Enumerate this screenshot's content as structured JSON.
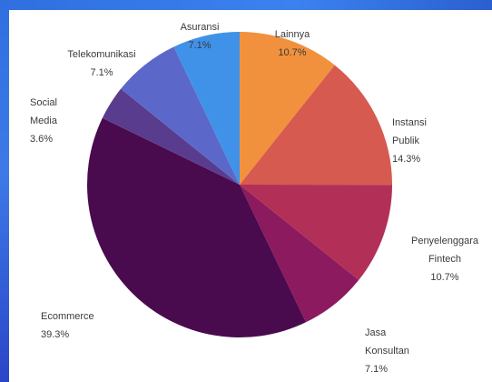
{
  "chart_data": {
    "type": "pie",
    "title": "",
    "slices": [
      {
        "label": [
          "Lainnya"
        ],
        "value": 10.7,
        "percent_label": "10.7%",
        "color": "#f2913d"
      },
      {
        "label": [
          "Instansi",
          "Publik"
        ],
        "value": 14.3,
        "percent_label": "14.3%",
        "color": "#d65a4f"
      },
      {
        "label": [
          "Penyelenggara",
          "Fintech"
        ],
        "value": 10.7,
        "percent_label": "10.7%",
        "color": "#b23058"
      },
      {
        "label": [
          "Jasa",
          "Konsultan"
        ],
        "value": 7.1,
        "percent_label": "7.1%",
        "color": "#8c1a5f"
      },
      {
        "label": [
          "Ecommerce"
        ],
        "value": 39.3,
        "percent_label": "39.3%",
        "color": "#4a0a4e"
      },
      {
        "label": [
          "Social",
          "Media"
        ],
        "value": 3.6,
        "percent_label": "3.6%",
        "color": "#5a3c8f"
      },
      {
        "label": [
          "Telekomunikasi"
        ],
        "value": 7.1,
        "percent_label": "7.1%",
        "color": "#5b68c9"
      },
      {
        "label": [
          "Asuransi"
        ],
        "value": 7.1,
        "percent_label": "7.1%",
        "color": "#3f92e8"
      }
    ]
  }
}
